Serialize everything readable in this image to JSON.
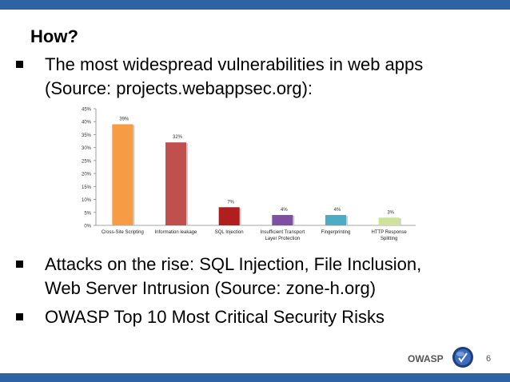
{
  "slide": {
    "title": "How?",
    "bullets": [
      {
        "line1": "The most widespread vulnerabilities in web apps",
        "line2": "(Source: projects.webappsec.org):"
      },
      {
        "line1": "Attacks on the rise: SQL Injection, File Inclusion,",
        "line2": "Web Server Intrusion (Source: zone-h.org)"
      },
      {
        "line1": "OWASP Top 10 Most Critical Security Risks",
        "line2": ""
      }
    ],
    "footer_brand": "OWASP",
    "page_number": "6"
  },
  "colors": {
    "bars": [
      "#f79b45",
      "#c0504d",
      "#b01e1e",
      "#7f4fa3",
      "#4bacc6",
      "#d0e29a"
    ],
    "accent_bar": "#2e63a3"
  },
  "chart_data": {
    "type": "bar",
    "categories": [
      "Cross-Site Scripting",
      "Information leakage",
      "SQL Injection",
      "Insufficient Transport Layer Protection",
      "Fingerprinting",
      "HTTP Response Splitting"
    ],
    "category_lines": [
      [
        "Cross-Site Scripting"
      ],
      [
        "Information leakage"
      ],
      [
        "SQL Injection"
      ],
      [
        "Insufficient Transport",
        "Layer Protection"
      ],
      [
        "Fingerprinting"
      ],
      [
        "HTTP Response",
        "Splitting"
      ]
    ],
    "values": [
      39,
      32,
      7,
      4,
      4,
      3
    ],
    "value_labels": [
      "39%",
      "32%",
      "7%",
      "4%",
      "4%",
      "3%"
    ],
    "y_ticks": [
      "0%",
      "5%",
      "10%",
      "15%",
      "20%",
      "25%",
      "30%",
      "35%",
      "40%",
      "45%"
    ],
    "ylim": [
      0,
      45
    ],
    "grid": false
  }
}
